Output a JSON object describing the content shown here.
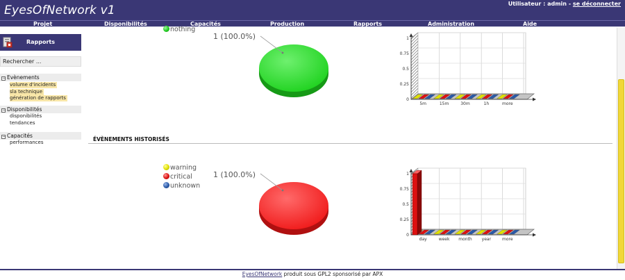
{
  "header": {
    "app_title": "EyesOfNetwork v1",
    "user_prefix": "Utilisateur : ",
    "user_name": "admin",
    "separator": " - ",
    "logout_label": "se déconnecter"
  },
  "menu": {
    "items": [
      {
        "label": "Projet"
      },
      {
        "label": "Disponibilités"
      },
      {
        "label": "Capacités"
      },
      {
        "label": "Production"
      },
      {
        "label": "Rapports"
      },
      {
        "label": "Administration"
      },
      {
        "label": "Aide"
      }
    ]
  },
  "sidebar": {
    "title": "Rapports",
    "search_value": "Rechercher ...",
    "sections": [
      {
        "label": "Evènements",
        "toggle": "−",
        "items": [
          "volume d'incidents",
          "sla technique",
          "génération de rapports"
        ]
      },
      {
        "label": "Disponibilités",
        "toggle": "−",
        "items": [
          "disponibilités",
          "tendances"
        ]
      },
      {
        "label": "Capacités",
        "toggle": "−",
        "items": [
          "performances"
        ]
      }
    ]
  },
  "colors": {
    "brand": "#3a3775",
    "ok": "#22cc22",
    "warning": "#e0e000",
    "critical": "#dd1111",
    "unknown": "#2a5aa8",
    "scrollbar_thumb": "#f0d838"
  },
  "panel_top": {
    "legend": [
      {
        "name": "nothing",
        "color_key": "ok"
      }
    ],
    "pie_label": "1 (100.0%)"
  },
  "panel_bottom": {
    "section_title": "ÉVÈNEMENTS HISTORISÉS",
    "legend": [
      {
        "name": "warning",
        "color_key": "warning"
      },
      {
        "name": "critical",
        "color_key": "critical"
      },
      {
        "name": "unknown",
        "color_key": "unknown"
      }
    ],
    "pie_label": "1 (100.0%)"
  },
  "chart_data": [
    {
      "type": "pie",
      "series": [
        {
          "name": "nothing",
          "values": [
            1
          ]
        }
      ],
      "data_labels": [
        "1 (100.0%)"
      ],
      "legend": [
        "nothing"
      ]
    },
    {
      "type": "bar",
      "categories": [
        "5m",
        "15m",
        "30m",
        "1h",
        "more"
      ],
      "series": [
        {
          "name": "nothing",
          "values": [
            0,
            0,
            0,
            0,
            0
          ]
        }
      ],
      "ylim": [
        0,
        1
      ],
      "yticks": [
        "0",
        "0.25",
        "0.5",
        "0.75",
        "1"
      ],
      "grid": true
    },
    {
      "type": "pie",
      "series": [
        {
          "name": "critical",
          "values": [
            1
          ]
        }
      ],
      "data_labels": [
        "1 (100.0%)"
      ],
      "legend": [
        "warning",
        "critical",
        "unknown"
      ]
    },
    {
      "type": "bar",
      "categories": [
        "day",
        "week",
        "month",
        "year",
        "more"
      ],
      "series": [
        {
          "name": "warning",
          "values": [
            0,
            0,
            0,
            0,
            0
          ]
        },
        {
          "name": "critical",
          "values": [
            1,
            0,
            0,
            0,
            0
          ]
        },
        {
          "name": "unknown",
          "values": [
            0,
            0,
            0,
            0,
            0
          ]
        }
      ],
      "ylim": [
        0,
        1
      ],
      "yticks": [
        "0",
        "0.25",
        "0.5",
        "0.75",
        "1"
      ],
      "grid": true
    }
  ],
  "footer": {
    "brand_link": "EyesOfNetwork",
    "text": " produit sous GPL2 sponsorisé par APX"
  }
}
